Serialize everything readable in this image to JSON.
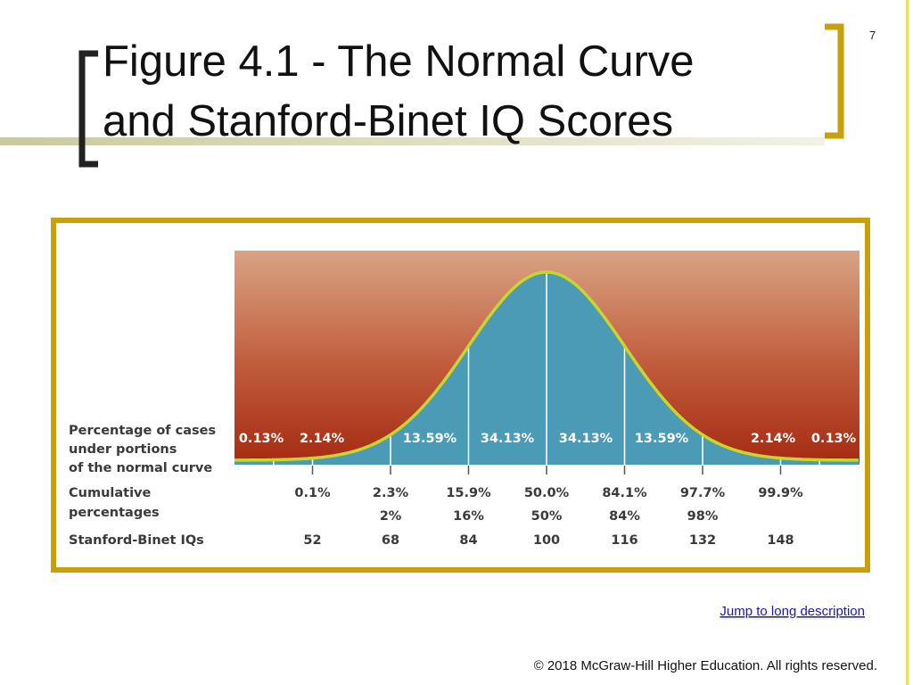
{
  "slide_number": "7",
  "title": [
    "Figure 4.1 - The Normal Curve",
    "and Stanford-Binet IQ Scores"
  ],
  "figure": {
    "row_labels": {
      "percentage": [
        "Percentage of cases",
        "under portions",
        "of the normal curve"
      ],
      "cumulative": [
        "Cumulative",
        "percentages"
      ],
      "iq": [
        "Stanford-Binet IQs"
      ]
    },
    "segment_percentages": [
      "0.13%",
      "2.14%",
      "13.59%",
      "34.13%",
      "34.13%",
      "13.59%",
      "2.14%",
      "0.13%"
    ],
    "cumulative": [
      "0.1%",
      "2.3%",
      "15.9%",
      "50.0%",
      "84.1%",
      "97.7%",
      "99.9%"
    ],
    "cumulative_rounded": [
      "2%",
      "16%",
      "50%",
      "84%",
      "98%"
    ],
    "iqs": [
      "52",
      "68",
      "84",
      "100",
      "116",
      "132",
      "148"
    ]
  },
  "link": "Jump to long description",
  "footer": "© 2018 McGraw-Hill Higher Education. All rights reserved."
}
